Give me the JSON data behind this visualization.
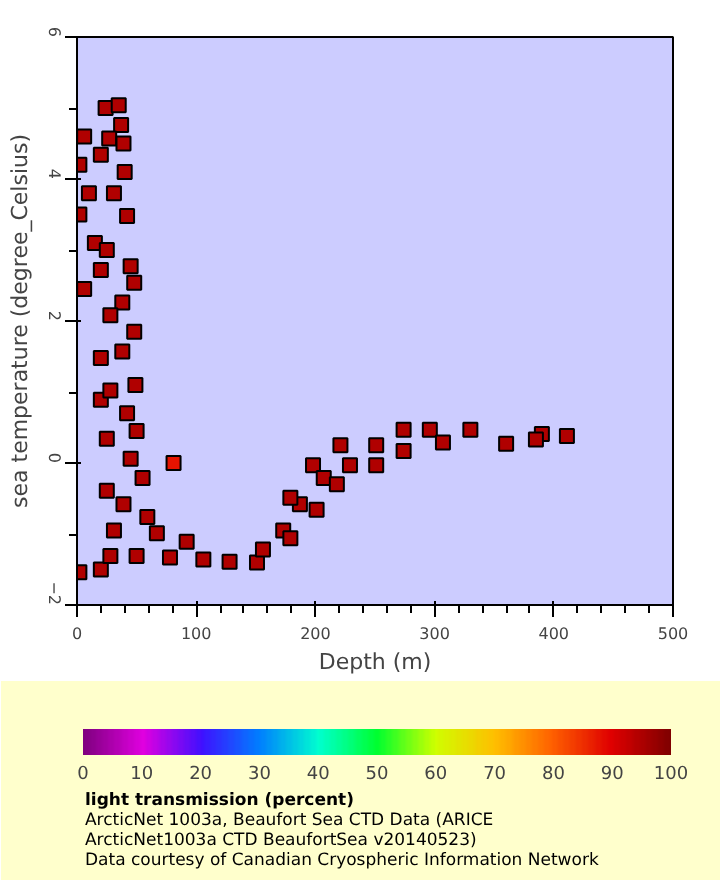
{
  "chart_data": {
    "type": "scatter",
    "xlabel": "Depth (m)",
    "ylabel": "sea temperature (degree_Celsius)",
    "clabel": "light transmission (percent)",
    "xlim": [
      0,
      500
    ],
    "xticks": [
      0,
      100,
      200,
      300,
      400,
      500
    ],
    "ylim": [
      -2,
      6
    ],
    "yticks": [
      -2,
      0,
      2,
      4,
      6
    ],
    "clim": [
      0,
      100
    ],
    "cticks": [
      0,
      10,
      20,
      30,
      40,
      50,
      60,
      70,
      80,
      90,
      100
    ],
    "marker": "square",
    "grid": false,
    "annotations": [
      "ArcticNet 1003a, Beaufort Sea CTD Data (ARICE",
      "ArcticNet1003a CTD BeaufortSea v20140523)",
      "Data courtesy of Canadian Cryospheric Information Network"
    ],
    "x": [
      24,
      35,
      37,
      27,
      39,
      40,
      20,
      31,
      42,
      10,
      6,
      2,
      2,
      15,
      25,
      45,
      48,
      20,
      6,
      38,
      28,
      48,
      20,
      38,
      49,
      20,
      42,
      28,
      50,
      25,
      45,
      25,
      55,
      39,
      31,
      59,
      67,
      92,
      81,
      2,
      20,
      28,
      50,
      78,
      106,
      128,
      151,
      156,
      173,
      187,
      198,
      221,
      179,
      207,
      229,
      251,
      274,
      296,
      330,
      360,
      390,
      411,
      385,
      274,
      307,
      251,
      218,
      201,
      179
    ],
    "values": [
      5.0,
      5.04,
      4.76,
      4.57,
      4.5,
      4.1,
      4.34,
      3.8,
      3.48,
      3.8,
      4.6,
      4.2,
      3.5,
      3.1,
      3.0,
      2.77,
      2.54,
      2.72,
      2.45,
      2.26,
      2.08,
      1.85,
      1.48,
      1.57,
      1.1,
      0.89,
      0.7,
      1.02,
      0.45,
      0.34,
      0.06,
      -0.39,
      -0.21,
      -0.58,
      -0.95,
      -0.76,
      -0.99,
      -1.11,
      0.0,
      -1.54,
      -1.5,
      -1.31,
      -1.31,
      -1.33,
      -1.36,
      -1.39,
      -1.4,
      -1.22,
      -0.95,
      -0.58,
      -0.03,
      0.25,
      -0.49,
      -0.21,
      -0.03,
      0.25,
      0.47,
      0.47,
      0.47,
      0.27,
      0.41,
      0.38,
      0.33,
      0.17,
      0.29,
      -0.03,
      -0.3,
      -0.66,
      -1.06
    ],
    "cvalues": [
      95,
      95,
      95,
      95,
      95,
      95,
      95,
      95,
      95,
      95,
      95,
      95,
      95,
      95,
      95,
      95,
      95,
      95,
      95,
      95,
      95,
      95,
      95,
      95,
      95,
      95,
      95,
      95,
      95,
      95,
      95,
      95,
      95,
      95,
      95,
      95,
      95,
      95,
      88,
      95,
      95,
      95,
      95,
      95,
      95,
      95,
      95,
      95,
      95,
      95,
      95,
      95,
      95,
      95,
      95,
      95,
      95,
      95,
      95,
      95,
      95,
      95,
      95,
      95,
      95,
      95,
      95,
      95,
      95
    ]
  }
}
